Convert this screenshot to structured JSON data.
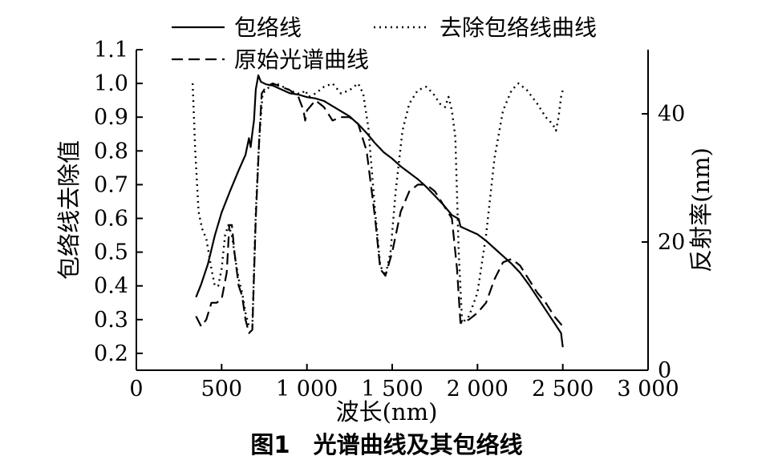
{
  "chart_data": {
    "type": "line",
    "caption": "图1　光谱曲线及其包络线",
    "xlabel": "波长(nm)",
    "ylabel_left": "包络线去除值",
    "ylabel_right": "反射率(nm)",
    "xlim": [
      0,
      3000
    ],
    "ylim_left": [
      0.15,
      1.1
    ],
    "ylim_right": [
      0,
      50
    ],
    "x_ticks": [
      {
        "value": 0,
        "label": "0"
      },
      {
        "value": 500,
        "label": "500"
      },
      {
        "value": 1000,
        "label": "1 000"
      },
      {
        "value": 1500,
        "label": "1 500"
      },
      {
        "value": 2000,
        "label": "2 000"
      },
      {
        "value": 2500,
        "label": "2 500"
      },
      {
        "value": 3000,
        "label": "3 000"
      }
    ],
    "y_left_ticks": [
      {
        "value": 0.2,
        "label": "0.2"
      },
      {
        "value": 0.3,
        "label": "0.3"
      },
      {
        "value": 0.4,
        "label": "0.4"
      },
      {
        "value": 0.5,
        "label": "0.5"
      },
      {
        "value": 0.6,
        "label": "0.6"
      },
      {
        "value": 0.7,
        "label": "0.7"
      },
      {
        "value": 0.8,
        "label": "0.8"
      },
      {
        "value": 0.9,
        "label": "0.9"
      },
      {
        "value": 1.0,
        "label": "1.0"
      },
      {
        "value": 1.1,
        "label": "1.1"
      }
    ],
    "y_right_ticks": [
      {
        "value": 0,
        "label": "0"
      },
      {
        "value": 20,
        "label": "20"
      },
      {
        "value": 40,
        "label": "40"
      }
    ],
    "grid": false,
    "legend": "top",
    "series": [
      {
        "name": "包络线",
        "style": "solid",
        "axis": "right",
        "points": [
          [
            350,
            11.4
          ],
          [
            380,
            13.4
          ],
          [
            420,
            16.6
          ],
          [
            460,
            21.0
          ],
          [
            500,
            24.6
          ],
          [
            550,
            28.0
          ],
          [
            600,
            31.2
          ],
          [
            640,
            33.6
          ],
          [
            660,
            36.2
          ],
          [
            670,
            34.8
          ],
          [
            680,
            37.0
          ],
          [
            690,
            39.0
          ],
          [
            700,
            43.8
          ],
          [
            715,
            46.0
          ],
          [
            730,
            45.0
          ],
          [
            760,
            44.6
          ],
          [
            800,
            44.4
          ],
          [
            850,
            43.8
          ],
          [
            900,
            43.2
          ],
          [
            950,
            43.0
          ],
          [
            1000,
            42.6
          ],
          [
            1050,
            42.4
          ],
          [
            1100,
            42.0
          ],
          [
            1150,
            41.2
          ],
          [
            1200,
            40.4
          ],
          [
            1250,
            39.6
          ],
          [
            1300,
            38.4
          ],
          [
            1350,
            37.0
          ],
          [
            1400,
            35.4
          ],
          [
            1450,
            34.0
          ],
          [
            1500,
            33.0
          ],
          [
            1550,
            31.8
          ],
          [
            1600,
            30.8
          ],
          [
            1650,
            29.8
          ],
          [
            1700,
            28.6
          ],
          [
            1750,
            27.2
          ],
          [
            1800,
            25.8
          ],
          [
            1850,
            24.2
          ],
          [
            1890,
            23.6
          ],
          [
            1900,
            22.4
          ],
          [
            1950,
            21.8
          ],
          [
            2000,
            21.2
          ],
          [
            2050,
            20.2
          ],
          [
            2100,
            19.0
          ],
          [
            2150,
            17.8
          ],
          [
            2200,
            16.6
          ],
          [
            2250,
            15.2
          ],
          [
            2300,
            13.4
          ],
          [
            2350,
            11.4
          ],
          [
            2400,
            9.4
          ],
          [
            2450,
            7.4
          ],
          [
            2490,
            5.8
          ],
          [
            2500,
            3.6
          ]
        ]
      },
      {
        "name": "原始光谱曲线",
        "style": "dashed",
        "axis": "left",
        "points": [
          [
            350,
            0.31
          ],
          [
            380,
            0.28
          ],
          [
            410,
            0.3
          ],
          [
            440,
            0.35
          ],
          [
            470,
            0.35
          ],
          [
            500,
            0.36
          ],
          [
            530,
            0.44
          ],
          [
            545,
            0.58
          ],
          [
            560,
            0.58
          ],
          [
            575,
            0.5
          ],
          [
            600,
            0.4
          ],
          [
            620,
            0.37
          ],
          [
            640,
            0.3
          ],
          [
            660,
            0.26
          ],
          [
            680,
            0.27
          ],
          [
            700,
            0.6
          ],
          [
            720,
            0.83
          ],
          [
            735,
            0.97
          ],
          [
            760,
            0.99
          ],
          [
            800,
            1.0
          ],
          [
            850,
            0.99
          ],
          [
            900,
            0.98
          ],
          [
            950,
            0.96
          ],
          [
            980,
            0.92
          ],
          [
            990,
            0.89
          ],
          [
            1000,
            0.92
          ],
          [
            1050,
            0.95
          ],
          [
            1100,
            0.93
          ],
          [
            1150,
            0.89
          ],
          [
            1200,
            0.9
          ],
          [
            1250,
            0.9
          ],
          [
            1300,
            0.88
          ],
          [
            1350,
            0.8
          ],
          [
            1400,
            0.6
          ],
          [
            1430,
            0.45
          ],
          [
            1460,
            0.43
          ],
          [
            1500,
            0.5
          ],
          [
            1550,
            0.62
          ],
          [
            1600,
            0.68
          ],
          [
            1650,
            0.7
          ],
          [
            1700,
            0.7
          ],
          [
            1750,
            0.68
          ],
          [
            1800,
            0.64
          ],
          [
            1850,
            0.6
          ],
          [
            1880,
            0.45
          ],
          [
            1900,
            0.29
          ],
          [
            1950,
            0.3
          ],
          [
            2000,
            0.32
          ],
          [
            2050,
            0.35
          ],
          [
            2100,
            0.42
          ],
          [
            2150,
            0.47
          ],
          [
            2200,
            0.48
          ],
          [
            2250,
            0.46
          ],
          [
            2300,
            0.42
          ],
          [
            2350,
            0.38
          ],
          [
            2400,
            0.35
          ],
          [
            2450,
            0.31
          ],
          [
            2500,
            0.28
          ]
        ]
      },
      {
        "name": "去除包络线曲线",
        "style": "dotted",
        "axis": "left",
        "points": [
          [
            330,
            1.0
          ],
          [
            345,
            0.8
          ],
          [
            365,
            0.62
          ],
          [
            385,
            0.57
          ],
          [
            410,
            0.54
          ],
          [
            440,
            0.45
          ],
          [
            460,
            0.4
          ],
          [
            480,
            0.4
          ],
          [
            500,
            0.45
          ],
          [
            520,
            0.55
          ],
          [
            540,
            0.58
          ],
          [
            560,
            0.55
          ],
          [
            580,
            0.48
          ],
          [
            600,
            0.42
          ],
          [
            620,
            0.38
          ],
          [
            640,
            0.32
          ],
          [
            660,
            0.28
          ],
          [
            680,
            0.28
          ],
          [
            700,
            0.62
          ],
          [
            720,
            0.83
          ],
          [
            740,
            0.97
          ],
          [
            780,
            0.99
          ],
          [
            820,
            1.0
          ],
          [
            860,
            0.99
          ],
          [
            900,
            0.98
          ],
          [
            940,
            0.97
          ],
          [
            970,
            0.97
          ],
          [
            990,
            0.98
          ],
          [
            1010,
            0.96
          ],
          [
            1050,
            0.97
          ],
          [
            1100,
            0.99
          ],
          [
            1150,
            1.0
          ],
          [
            1200,
            0.97
          ],
          [
            1250,
            0.98
          ],
          [
            1300,
            1.0
          ],
          [
            1330,
            0.97
          ],
          [
            1360,
            0.87
          ],
          [
            1400,
            0.62
          ],
          [
            1430,
            0.46
          ],
          [
            1460,
            0.43
          ],
          [
            1490,
            0.5
          ],
          [
            1520,
            0.68
          ],
          [
            1560,
            0.86
          ],
          [
            1600,
            0.94
          ],
          [
            1650,
            0.98
          ],
          [
            1700,
            0.99
          ],
          [
            1740,
            0.97
          ],
          [
            1780,
            0.94
          ],
          [
            1810,
            0.93
          ],
          [
            1830,
            0.96
          ],
          [
            1850,
            0.92
          ],
          [
            1870,
            0.84
          ],
          [
            1890,
            0.5
          ],
          [
            1910,
            0.29
          ],
          [
            1950,
            0.31
          ],
          [
            2000,
            0.38
          ],
          [
            2050,
            0.55
          ],
          [
            2100,
            0.78
          ],
          [
            2150,
            0.92
          ],
          [
            2200,
            0.98
          ],
          [
            2240,
            1.0
          ],
          [
            2290,
            0.98
          ],
          [
            2350,
            0.94
          ],
          [
            2400,
            0.9
          ],
          [
            2440,
            0.88
          ],
          [
            2460,
            0.86
          ],
          [
            2475,
            0.9
          ],
          [
            2490,
            0.96
          ],
          [
            2500,
            0.98
          ]
        ]
      }
    ]
  }
}
